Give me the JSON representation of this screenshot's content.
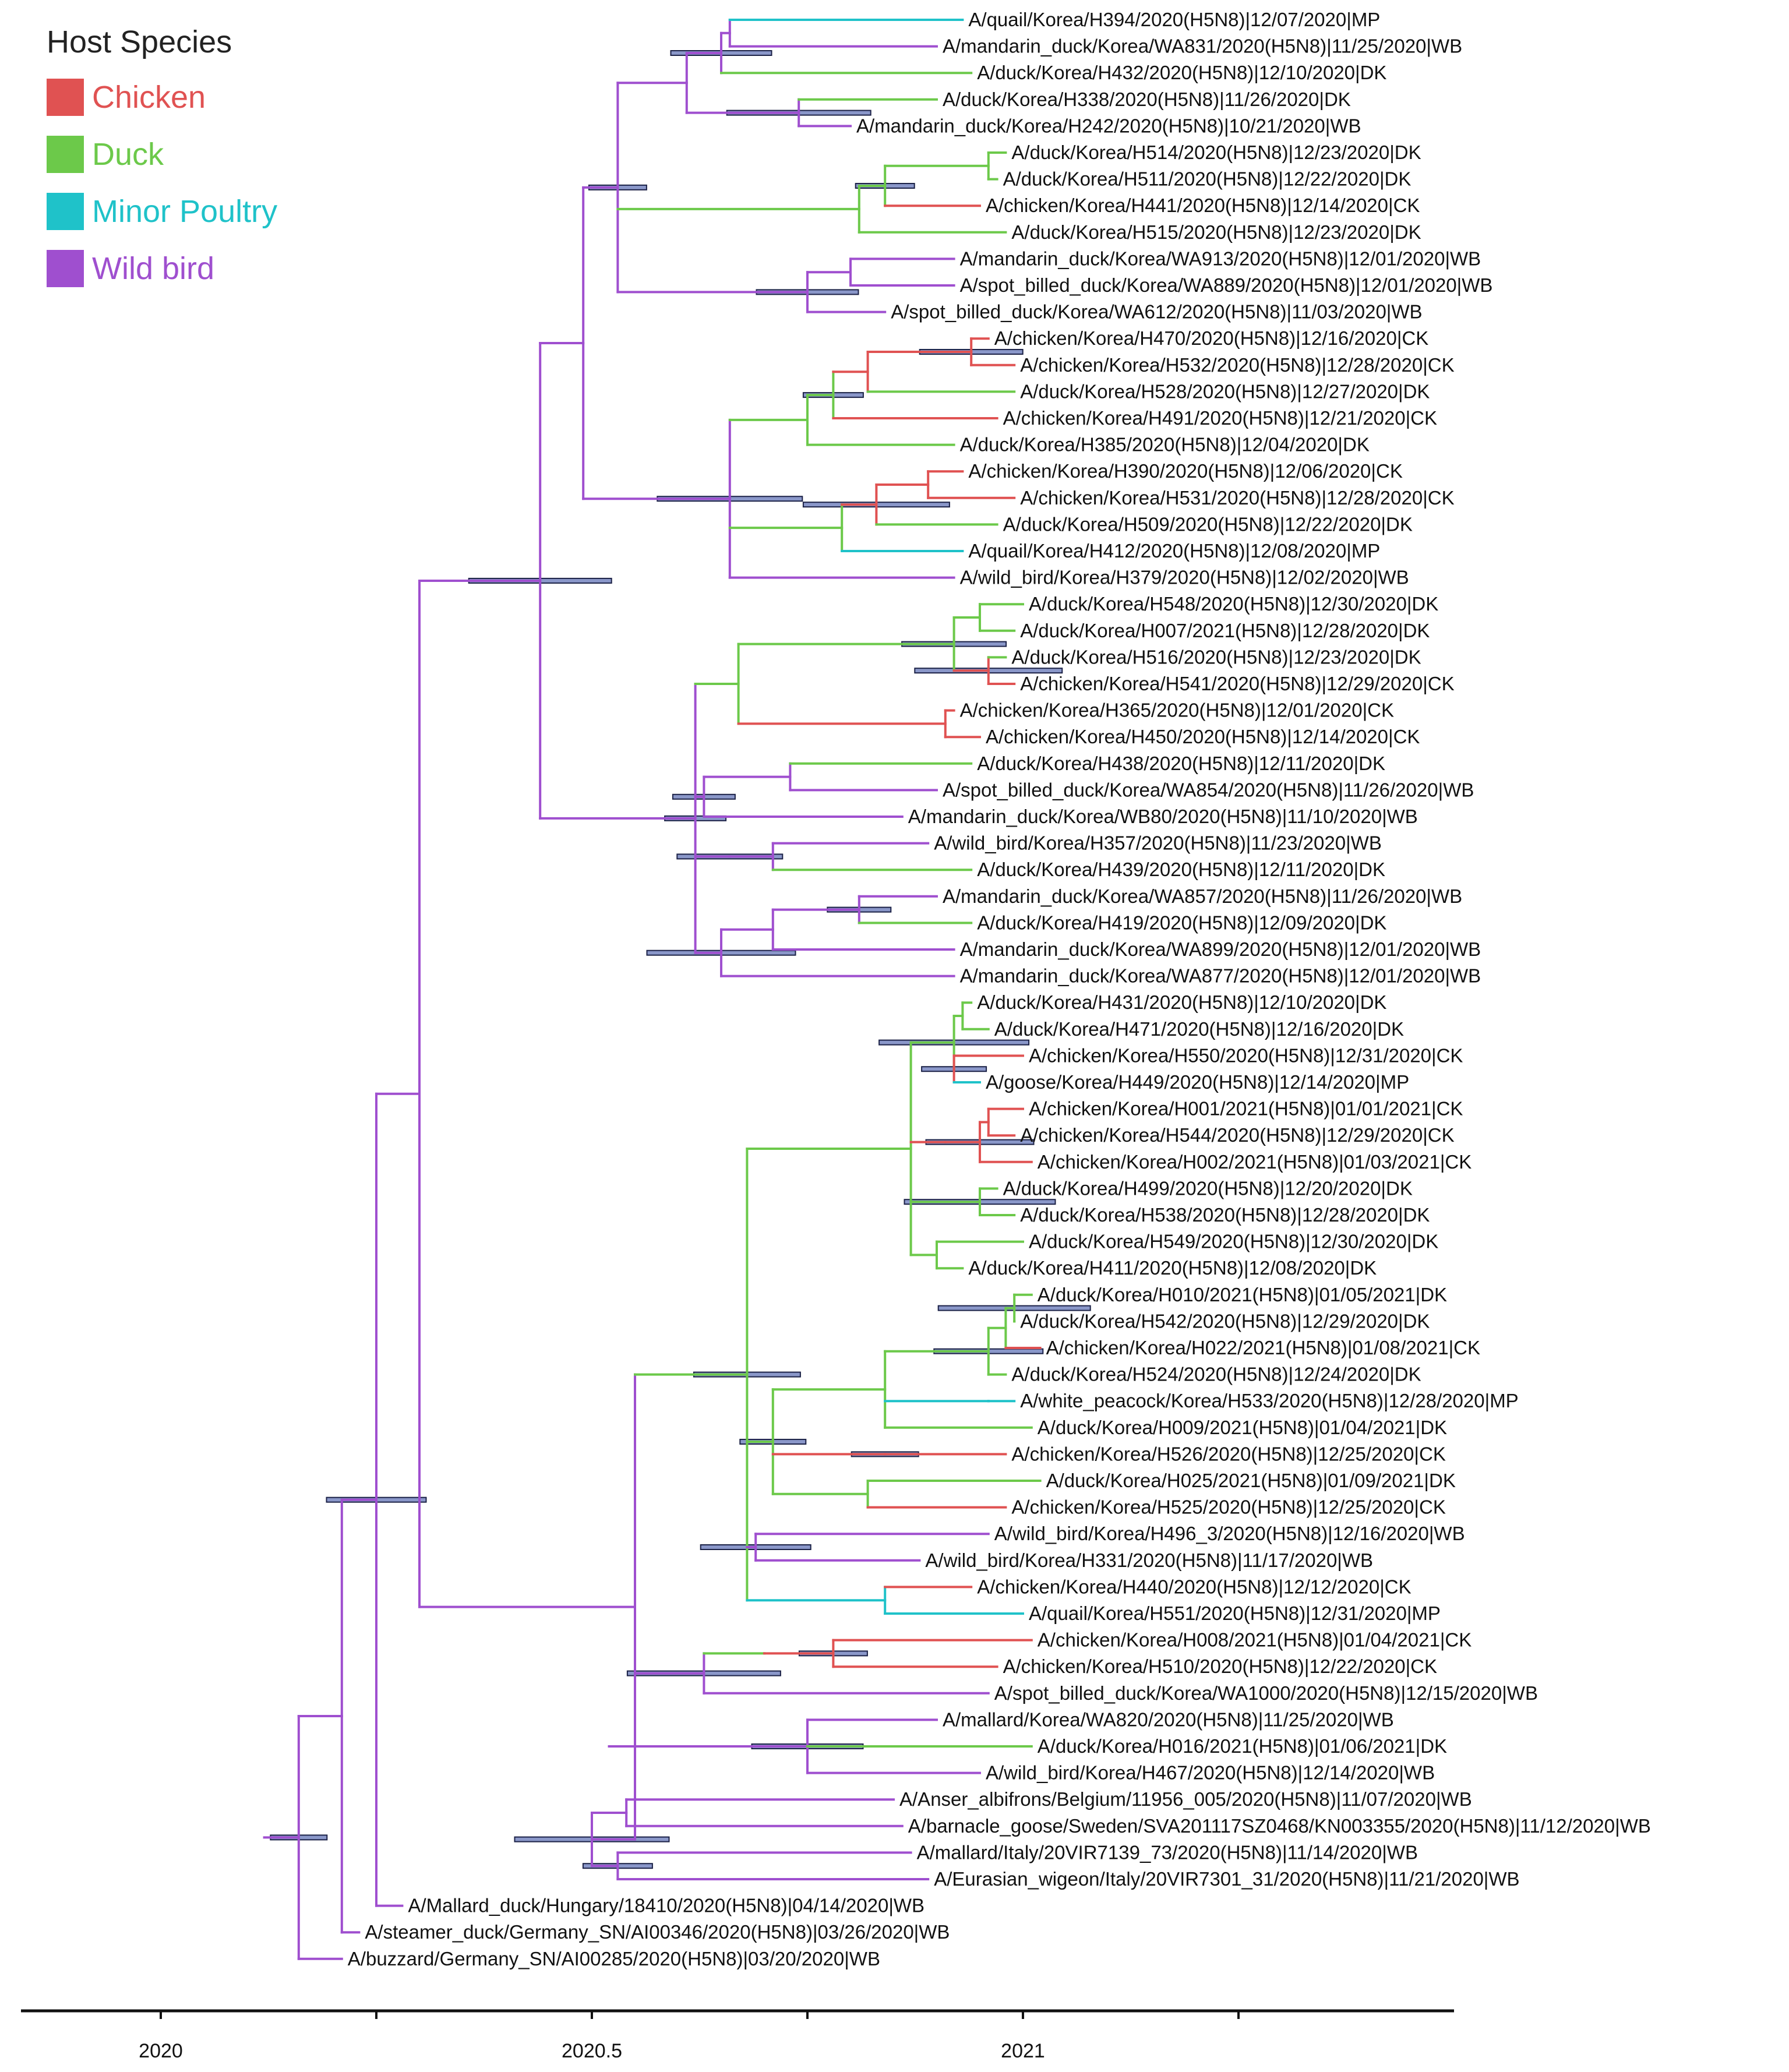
{
  "legend": {
    "title": "Host Species",
    "items": [
      {
        "code": "CK",
        "label": "Chicken",
        "color": "#e05252"
      },
      {
        "code": "DK",
        "label": "Duck",
        "color": "#6cc94a"
      },
      {
        "code": "MP",
        "label": "Minor Poultry",
        "color": "#1fc2c9"
      },
      {
        "code": "WB",
        "label": "Wild bird",
        "color": "#9f4fcf"
      }
    ]
  },
  "axis": {
    "ticks": [
      {
        "value": 2020.0,
        "label": "2020"
      },
      {
        "value": 2020.5,
        "label": "2020.5"
      },
      {
        "value": 2021.0,
        "label": "2021"
      }
    ],
    "range": [
      2019.84,
      2021.5
    ],
    "minor_ticks": [
      2020.25,
      2020.75,
      2021.25
    ]
  },
  "tips": [
    {
      "label": "A/quail/Korea/H394/2020(H5N8)|12/07/2020|MP",
      "host": "MP",
      "date": 2020.93
    },
    {
      "label": "A/mandarin_duck/Korea/WA831/2020(H5N8)|11/25/2020|WB",
      "host": "WB",
      "date": 2020.9
    },
    {
      "label": "A/duck/Korea/H432/2020(H5N8)|12/10/2020|DK",
      "host": "DK",
      "date": 2020.94
    },
    {
      "label": "A/duck/Korea/H338/2020(H5N8)|11/26/2020|DK",
      "host": "DK",
      "date": 2020.9
    },
    {
      "label": "A/mandarin_duck/Korea/H242/2020(H5N8)|10/21/2020|WB",
      "host": "WB",
      "date": 2020.8
    },
    {
      "label": "A/duck/Korea/H514/2020(H5N8)|12/23/2020|DK",
      "host": "DK",
      "date": 2020.98
    },
    {
      "label": "A/duck/Korea/H511/2020(H5N8)|12/22/2020|DK",
      "host": "DK",
      "date": 2020.97
    },
    {
      "label": "A/chicken/Korea/H441/2020(H5N8)|12/14/2020|CK",
      "host": "CK",
      "date": 2020.95
    },
    {
      "label": "A/duck/Korea/H515/2020(H5N8)|12/23/2020|DK",
      "host": "DK",
      "date": 2020.98
    },
    {
      "label": "A/mandarin_duck/Korea/WA913/2020(H5N8)|12/01/2020|WB",
      "host": "WB",
      "date": 2020.92
    },
    {
      "label": "A/spot_billed_duck/Korea/WA889/2020(H5N8)|12/01/2020|WB",
      "host": "WB",
      "date": 2020.92
    },
    {
      "label": "A/spot_billed_duck/Korea/WA612/2020(H5N8)|11/03/2020|WB",
      "host": "WB",
      "date": 2020.84
    },
    {
      "label": "A/chicken/Korea/H470/2020(H5N8)|12/16/2020|CK",
      "host": "CK",
      "date": 2020.96
    },
    {
      "label": "A/chicken/Korea/H532/2020(H5N8)|12/28/2020|CK",
      "host": "CK",
      "date": 2020.99
    },
    {
      "label": "A/duck/Korea/H528/2020(H5N8)|12/27/2020|DK",
      "host": "DK",
      "date": 2020.99
    },
    {
      "label": "A/chicken/Korea/H491/2020(H5N8)|12/21/2020|CK",
      "host": "CK",
      "date": 2020.97
    },
    {
      "label": "A/duck/Korea/H385/2020(H5N8)|12/04/2020|DK",
      "host": "DK",
      "date": 2020.92
    },
    {
      "label": "A/chicken/Korea/H390/2020(H5N8)|12/06/2020|CK",
      "host": "CK",
      "date": 2020.93
    },
    {
      "label": "A/chicken/Korea/H531/2020(H5N8)|12/28/2020|CK",
      "host": "CK",
      "date": 2020.99
    },
    {
      "label": "A/duck/Korea/H509/2020(H5N8)|12/22/2020|DK",
      "host": "DK",
      "date": 2020.97
    },
    {
      "label": "A/quail/Korea/H412/2020(H5N8)|12/08/2020|MP",
      "host": "MP",
      "date": 2020.93
    },
    {
      "label": "A/wild_bird/Korea/H379/2020(H5N8)|12/02/2020|WB",
      "host": "WB",
      "date": 2020.92
    },
    {
      "label": "A/duck/Korea/H548/2020(H5N8)|12/30/2020|DK",
      "host": "DK",
      "date": 2021.0
    },
    {
      "label": "A/duck/Korea/H007/2021(H5N8)|12/28/2020|DK",
      "host": "DK",
      "date": 2020.99
    },
    {
      "label": "A/duck/Korea/H516/2020(H5N8)|12/23/2020|DK",
      "host": "DK",
      "date": 2020.98
    },
    {
      "label": "A/chicken/Korea/H541/2020(H5N8)|12/29/2020|CK",
      "host": "CK",
      "date": 2020.99
    },
    {
      "label": "A/chicken/Korea/H365/2020(H5N8)|12/01/2020|CK",
      "host": "CK",
      "date": 2020.92
    },
    {
      "label": "A/chicken/Korea/H450/2020(H5N8)|12/14/2020|CK",
      "host": "CK",
      "date": 2020.95
    },
    {
      "label": "A/duck/Korea/H438/2020(H5N8)|12/11/2020|DK",
      "host": "DK",
      "date": 2020.94
    },
    {
      "label": "A/spot_billed_duck/Korea/WA854/2020(H5N8)|11/26/2020|WB",
      "host": "WB",
      "date": 2020.9
    },
    {
      "label": "A/mandarin_duck/Korea/WB80/2020(H5N8)|11/10/2020|WB",
      "host": "WB",
      "date": 2020.86
    },
    {
      "label": "A/wild_bird/Korea/H357/2020(H5N8)|11/23/2020|WB",
      "host": "WB",
      "date": 2020.89
    },
    {
      "label": "A/duck/Korea/H439/2020(H5N8)|12/11/2020|DK",
      "host": "DK",
      "date": 2020.94
    },
    {
      "label": "A/mandarin_duck/Korea/WA857/2020(H5N8)|11/26/2020|WB",
      "host": "WB",
      "date": 2020.9
    },
    {
      "label": "A/duck/Korea/H419/2020(H5N8)|12/09/2020|DK",
      "host": "DK",
      "date": 2020.94
    },
    {
      "label": "A/mandarin_duck/Korea/WA899/2020(H5N8)|12/01/2020|WB",
      "host": "WB",
      "date": 2020.92
    },
    {
      "label": "A/mandarin_duck/Korea/WA877/2020(H5N8)|12/01/2020|WB",
      "host": "WB",
      "date": 2020.92
    },
    {
      "label": "A/duck/Korea/H431/2020(H5N8)|12/10/2020|DK",
      "host": "DK",
      "date": 2020.94
    },
    {
      "label": "A/duck/Korea/H471/2020(H5N8)|12/16/2020|DK",
      "host": "DK",
      "date": 2020.96
    },
    {
      "label": "A/chicken/Korea/H550/2020(H5N8)|12/31/2020|CK",
      "host": "CK",
      "date": 2021.0
    },
    {
      "label": "A/goose/Korea/H449/2020(H5N8)|12/14/2020|MP",
      "host": "MP",
      "date": 2020.95
    },
    {
      "label": "A/chicken/Korea/H001/2021(H5N8)|01/01/2021|CK",
      "host": "CK",
      "date": 2021.0
    },
    {
      "label": "A/chicken/Korea/H544/2020(H5N8)|12/29/2020|CK",
      "host": "CK",
      "date": 2020.99
    },
    {
      "label": "A/chicken/Korea/H002/2021(H5N8)|01/03/2021|CK",
      "host": "CK",
      "date": 2021.01
    },
    {
      "label": "A/duck/Korea/H499/2020(H5N8)|12/20/2020|DK",
      "host": "DK",
      "date": 2020.97
    },
    {
      "label": "A/duck/Korea/H538/2020(H5N8)|12/28/2020|DK",
      "host": "DK",
      "date": 2020.99
    },
    {
      "label": "A/duck/Korea/H549/2020(H5N8)|12/30/2020|DK",
      "host": "DK",
      "date": 2021.0
    },
    {
      "label": "A/duck/Korea/H411/2020(H5N8)|12/08/2020|DK",
      "host": "DK",
      "date": 2020.93
    },
    {
      "label": "A/duck/Korea/H010/2021(H5N8)|01/05/2021|DK",
      "host": "DK",
      "date": 2021.01
    },
    {
      "label": "A/duck/Korea/H542/2020(H5N8)|12/29/2020|DK",
      "host": "DK",
      "date": 2020.99
    },
    {
      "label": "A/chicken/Korea/H022/2021(H5N8)|01/08/2021|CK",
      "host": "CK",
      "date": 2021.02
    },
    {
      "label": "A/duck/Korea/H524/2020(H5N8)|12/24/2020|DK",
      "host": "DK",
      "date": 2020.98
    },
    {
      "label": "A/white_peacock/Korea/H533/2020(H5N8)|12/28/2020|MP",
      "host": "MP",
      "date": 2020.99
    },
    {
      "label": "A/duck/Korea/H009/2021(H5N8)|01/04/2021|DK",
      "host": "DK",
      "date": 2021.01
    },
    {
      "label": "A/chicken/Korea/H526/2020(H5N8)|12/25/2020|CK",
      "host": "CK",
      "date": 2020.98
    },
    {
      "label": "A/duck/Korea/H025/2021(H5N8)|01/09/2021|DK",
      "host": "DK",
      "date": 2021.02
    },
    {
      "label": "A/chicken/Korea/H525/2020(H5N8)|12/25/2020|CK",
      "host": "CK",
      "date": 2020.98
    },
    {
      "label": "A/wild_bird/Korea/H496_3/2020(H5N8)|12/16/2020|WB",
      "host": "WB",
      "date": 2020.96
    },
    {
      "label": "A/wild_bird/Korea/H331/2020(H5N8)|11/17/2020|WB",
      "host": "WB",
      "date": 2020.88
    },
    {
      "label": "A/chicken/Korea/H440/2020(H5N8)|12/12/2020|CK",
      "host": "CK",
      "date": 2020.94
    },
    {
      "label": "A/quail/Korea/H551/2020(H5N8)|12/31/2020|MP",
      "host": "MP",
      "date": 2021.0
    },
    {
      "label": "A/chicken/Korea/H008/2021(H5N8)|01/04/2021|CK",
      "host": "CK",
      "date": 2021.01
    },
    {
      "label": "A/chicken/Korea/H510/2020(H5N8)|12/22/2020|CK",
      "host": "CK",
      "date": 2020.97
    },
    {
      "label": "A/spot_billed_duck/Korea/WA1000/2020(H5N8)|12/15/2020|WB",
      "host": "WB",
      "date": 2020.96
    },
    {
      "label": "A/mallard/Korea/WA820/2020(H5N8)|11/25/2020|WB",
      "host": "WB",
      "date": 2020.9
    },
    {
      "label": "A/duck/Korea/H016/2021(H5N8)|01/06/2021|DK",
      "host": "DK",
      "date": 2021.01
    },
    {
      "label": "A/wild_bird/Korea/H467/2020(H5N8)|12/14/2020|WB",
      "host": "WB",
      "date": 2020.95
    },
    {
      "label": "A/Anser_albifrons/Belgium/11956_005/2020(H5N8)|11/07/2020|WB",
      "host": "WB",
      "date": 2020.85
    },
    {
      "label": "A/barnacle_goose/Sweden/SVA201117SZ0468/KN003355/2020(H5N8)|11/12/2020|WB",
      "host": "WB",
      "date": 2020.86
    },
    {
      "label": "A/mallard/Italy/20VIR7139_73/2020(H5N8)|11/14/2020|WB",
      "host": "WB",
      "date": 2020.87
    },
    {
      "label": "A/Eurasian_wigeon/Italy/20VIR7301_31/2020(H5N8)|11/21/2020|WB",
      "host": "WB",
      "date": 2020.89
    },
    {
      "label": "A/Mallard_duck/Hungary/18410/2020(H5N8)|04/14/2020|WB",
      "host": "WB",
      "date": 2020.28
    },
    {
      "label": "A/steamer_duck/Germany_SN/AI00346/2020(H5N8)|03/26/2020|WB",
      "host": "WB",
      "date": 2020.23
    },
    {
      "label": "A/buzzard/Germany_SN/AI00285/2020(H5N8)|03/20/2020|WB",
      "host": "WB",
      "date": 2020.21
    }
  ]
}
